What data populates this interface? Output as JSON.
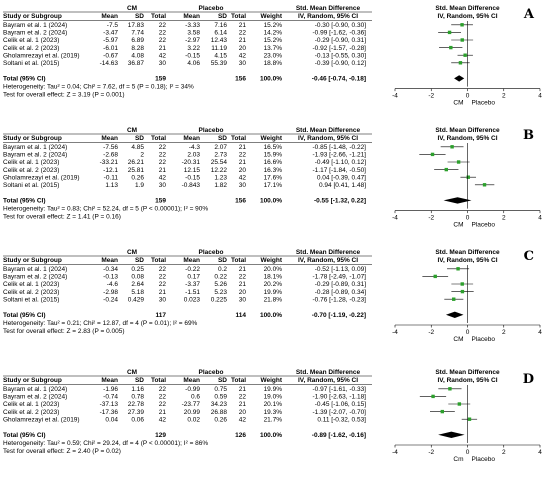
{
  "chart_data": [
    {
      "type": "forest",
      "panel": "A",
      "headers": {
        "group_exp": "CM",
        "group_ctl": "Placebo",
        "effect": "Std. Mean Difference",
        "effect_plot": "Std. Mean Difference",
        "study": "Study or Subgroup",
        "mean": "Mean",
        "sd": "SD",
        "total": "Total",
        "weight": "Weight",
        "method": "IV, Random, 95% CI",
        "method_plot": "IV, Random, 95% CI"
      },
      "studies": [
        {
          "name": "Bayram et al. 1 (2024)",
          "m1": "-7.5",
          "sd1": "17.83",
          "n1": "22",
          "m2": "-3.33",
          "sd2": "7.16",
          "n2": "21",
          "w": "15.2%",
          "ci": "-0.30 [-0.90, 0.30]",
          "est": -0.3,
          "lo": -0.9,
          "hi": 0.3
        },
        {
          "name": "Bayram et al. 2 (2024)",
          "m1": "-3.47",
          "sd1": "7.74",
          "n1": "22",
          "m2": "3.58",
          "sd2": "6.14",
          "n2": "22",
          "w": "14.2%",
          "ci": "-0.99 [-1.62, -0.36]",
          "est": -0.99,
          "lo": -1.62,
          "hi": -0.36
        },
        {
          "name": "Celik et al. 1 (2023)",
          "m1": "-5.97",
          "sd1": "6.89",
          "n1": "22",
          "m2": "-2.97",
          "sd2": "12.43",
          "n2": "21",
          "w": "15.2%",
          "ci": "-0.29 [-0.90, 0.31]",
          "est": -0.29,
          "lo": -0.9,
          "hi": 0.31
        },
        {
          "name": "Celik et al. 2 (2023)",
          "m1": "-6.01",
          "sd1": "8.28",
          "n1": "21",
          "m2": "3.22",
          "sd2": "11.19",
          "n2": "20",
          "w": "13.7%",
          "ci": "-0.92 [-1.57, -0.28]",
          "est": -0.92,
          "lo": -1.57,
          "hi": -0.28
        },
        {
          "name": "Gholamrezayi et al. (2019)",
          "m1": "-0.67",
          "sd1": "4.08",
          "n1": "42",
          "m2": "-0.15",
          "sd2": "4.15",
          "n2": "42",
          "w": "23.0%",
          "ci": "-0.13 [-0.55, 0.30]",
          "est": -0.13,
          "lo": -0.55,
          "hi": 0.3
        },
        {
          "name": "Soltani et al. (2015)",
          "m1": "-14.63",
          "sd1": "36.87",
          "n1": "30",
          "m2": "4.06",
          "sd2": "55.39",
          "n2": "30",
          "w": "18.8%",
          "ci": "-0.39 [-0.90, 0.12]",
          "est": -0.39,
          "lo": -0.9,
          "hi": 0.12
        }
      ],
      "total": {
        "label": "Total (95% CI)",
        "n1": "159",
        "n2": "156",
        "w": "100.0%",
        "ci": "-0.46 [-0.74, -0.18]",
        "est": -0.46,
        "lo": -0.74,
        "hi": -0.18
      },
      "heterogeneity": "Heterogeneity: Tau² = 0.04; Chi² = 7.62, df = 5 (P = 0.18); I² = 34%",
      "overall": "Test for overall effect: Z = 3.19 (P = 0.001)",
      "axis": {
        "ticks": [
          "-4",
          "-2",
          "0",
          "2",
          "4"
        ],
        "left": "CM",
        "right": "Placebo",
        "range": [
          -4,
          4
        ]
      }
    },
    {
      "type": "forest",
      "panel": "B",
      "studies": [
        {
          "name": "Bayram et al. 1 (2024)",
          "m1": "-7.56",
          "sd1": "4.85",
          "n1": "22",
          "m2": "-4.3",
          "sd2": "2.07",
          "n2": "21",
          "w": "16.5%",
          "ci": "-0.85 [-1.48, -0.22]",
          "est": -0.85,
          "lo": -1.48,
          "hi": -0.22
        },
        {
          "name": "Bayram et al. 2 (2024)",
          "m1": "-2.68",
          "sd1": "2",
          "n1": "22",
          "m2": "2.03",
          "sd2": "2.73",
          "n2": "22",
          "w": "15.9%",
          "ci": "-1.93 [-2.66, -1.21]",
          "est": -1.93,
          "lo": -2.66,
          "hi": -1.21
        },
        {
          "name": "Celik et al. 1 (2023)",
          "m1": "-33.21",
          "sd1": "26.21",
          "n1": "22",
          "m2": "-20.31",
          "sd2": "25.54",
          "n2": "21",
          "w": "16.6%",
          "ci": "-0.49 [-1.10, 0.12]",
          "est": -0.49,
          "lo": -1.1,
          "hi": 0.12
        },
        {
          "name": "Celik et al. 2 (2023)",
          "m1": "-12.1",
          "sd1": "25.81",
          "n1": "21",
          "m2": "12.15",
          "sd2": "12.22",
          "n2": "20",
          "w": "16.3%",
          "ci": "-1.17 [-1.84, -0.50]",
          "est": -1.17,
          "lo": -1.84,
          "hi": -0.5
        },
        {
          "name": "Gholamrezayi et al. (2019)",
          "m1": "-0.11",
          "sd1": "0.26",
          "n1": "42",
          "m2": "-0.15",
          "sd2": "1.23",
          "n2": "42",
          "w": "17.6%",
          "ci": "0.04 [-0.39, 0.47]",
          "est": 0.04,
          "lo": -0.39,
          "hi": 0.47
        },
        {
          "name": "Soltani et al. (2015)",
          "m1": "1.13",
          "sd1": "1.9",
          "n1": "30",
          "m2": "-0.843",
          "sd2": "1.82",
          "n2": "30",
          "w": "17.1%",
          "ci": "0.94 [0.41, 1.48]",
          "est": 0.94,
          "lo": 0.41,
          "hi": 1.48
        }
      ],
      "total": {
        "label": "Total (95% CI)",
        "n1": "159",
        "n2": "156",
        "w": "100.0%",
        "ci": "-0.55 [-1.32, 0.22]",
        "est": -0.55,
        "lo": -1.32,
        "hi": 0.22
      },
      "heterogeneity": "Heterogeneity: Tau² = 0.83; Chi² = 52.24, df = 5 (P < 0.00001); I² = 90%",
      "overall": "Test for overall effect: Z = 1.41 (P = 0.16)",
      "axis": {
        "ticks": [
          "-4",
          "-2",
          "0",
          "2",
          "4"
        ],
        "left": "CM",
        "right": "Placebo",
        "range": [
          -4,
          4
        ]
      }
    },
    {
      "type": "forest",
      "panel": "C",
      "studies": [
        {
          "name": "Bayram et al. 1 (2024)",
          "m1": "-0.34",
          "sd1": "0.25",
          "n1": "22",
          "m2": "-0.22",
          "sd2": "0.2",
          "n2": "21",
          "w": "20.0%",
          "ci": "-0.52 [-1.13, 0.09]",
          "est": -0.52,
          "lo": -1.13,
          "hi": 0.09
        },
        {
          "name": "Bayram et al. 2 (2024)",
          "m1": "-0.13",
          "sd1": "0.08",
          "n1": "22",
          "m2": "0.17",
          "sd2": "0.22",
          "n2": "22",
          "w": "18.1%",
          "ci": "-1.78 [-2.49, -1.07]",
          "est": -1.78,
          "lo": -2.49,
          "hi": -1.07
        },
        {
          "name": "Celik et al. 1 (2023)",
          "m1": "-4.6",
          "sd1": "2.64",
          "n1": "22",
          "m2": "-3.37",
          "sd2": "5.26",
          "n2": "21",
          "w": "20.2%",
          "ci": "-0.29 [-0.89, 0.31]",
          "est": -0.29,
          "lo": -0.89,
          "hi": 0.31
        },
        {
          "name": "Celik et al. 2 (2023)",
          "m1": "-2.98",
          "sd1": "5.18",
          "n1": "21",
          "m2": "-1.51",
          "sd2": "5.23",
          "n2": "20",
          "w": "19.9%",
          "ci": "-0.28 [-0.89, 0.34]",
          "est": -0.28,
          "lo": -0.89,
          "hi": 0.34
        },
        {
          "name": "Soltani et al. (2015)",
          "m1": "-0.24",
          "sd1": "0.429",
          "n1": "30",
          "m2": "0.023",
          "sd2": "0.225",
          "n2": "30",
          "w": "21.8%",
          "ci": "-0.76 [-1.28, -0.23]",
          "est": -0.76,
          "lo": -1.28,
          "hi": -0.23
        }
      ],
      "total": {
        "label": "Total (95% CI)",
        "n1": "117",
        "n2": "114",
        "w": "100.0%",
        "ci": "-0.70 [-1.19, -0.22]",
        "est": -0.7,
        "lo": -1.19,
        "hi": -0.22
      },
      "heterogeneity": "Heterogeneity: Tau² = 0.21; Chi² = 12.87, df = 4 (P = 0.01); I² = 69%",
      "overall": "Test for overall effect: Z = 2.83 (P = 0.005)",
      "axis": {
        "ticks": [
          "-4",
          "-2",
          "0",
          "2",
          "4"
        ],
        "left": "CM",
        "right": "Placebo",
        "range": [
          -4,
          4
        ]
      }
    },
    {
      "type": "forest",
      "panel": "D",
      "studies": [
        {
          "name": "Bayram et al. 1 (2024)",
          "m1": "-1.96",
          "sd1": "1.16",
          "n1": "22",
          "m2": "-0.99",
          "sd2": "0.75",
          "n2": "21",
          "w": "19.9%",
          "ci": "-0.97 [-1.61, -0.33]",
          "est": -0.97,
          "lo": -1.61,
          "hi": -0.33
        },
        {
          "name": "Bayram et al. 2 (2024)",
          "m1": "-0.74",
          "sd1": "0.78",
          "n1": "22",
          "m2": "0.6",
          "sd2": "0.59",
          "n2": "22",
          "w": "19.0%",
          "ci": "-1.90 [-2.63, -1.18]",
          "est": -1.9,
          "lo": -2.63,
          "hi": -1.18
        },
        {
          "name": "Celik et al. 1 (2023)",
          "m1": "-37.13",
          "sd1": "22.78",
          "n1": "22",
          "m2": "-23.77",
          "sd2": "34.23",
          "n2": "21",
          "w": "20.1%",
          "ci": "-0.45 [-1.06, 0.15]",
          "est": -0.45,
          "lo": -1.06,
          "hi": 0.15
        },
        {
          "name": "Celik et al. 2 (2023)",
          "m1": "-17.36",
          "sd1": "27.39",
          "n1": "21",
          "m2": "20.99",
          "sd2": "26.88",
          "n2": "20",
          "w": "19.3%",
          "ci": "-1.39 [-2.07, -0.70]",
          "est": -1.39,
          "lo": -2.07,
          "hi": -0.7
        },
        {
          "name": "Gholamrezayi et al. (2019)",
          "m1": "0.04",
          "sd1": "0.06",
          "n1": "42",
          "m2": "0.02",
          "sd2": "0.26",
          "n2": "42",
          "w": "21.7%",
          "ci": "0.11 [-0.32, 0.53]",
          "est": 0.11,
          "lo": -0.32,
          "hi": 0.53
        }
      ],
      "total": {
        "label": "Total (95% CI)",
        "n1": "129",
        "n2": "126",
        "w": "100.0%",
        "ci": "-0.89 [-1.62, -0.16]",
        "est": -0.89,
        "lo": -1.62,
        "hi": -0.16
      },
      "heterogeneity": "Heterogeneity: Tau² = 0.59; Chi² = 29.24, df = 4 (P < 0.00001); I² = 86%",
      "overall": "Test for overall effect: Z = 2.40 (P = 0.02)",
      "axis": {
        "ticks": [
          "-4",
          "-2",
          "0",
          "2",
          "4"
        ],
        "left": "Cm",
        "right": "Placebo",
        "range": [
          -4,
          4
        ]
      }
    }
  ],
  "colors": {
    "marker": "#2ca02c",
    "diamond": "#000000",
    "line": "#000000"
  }
}
